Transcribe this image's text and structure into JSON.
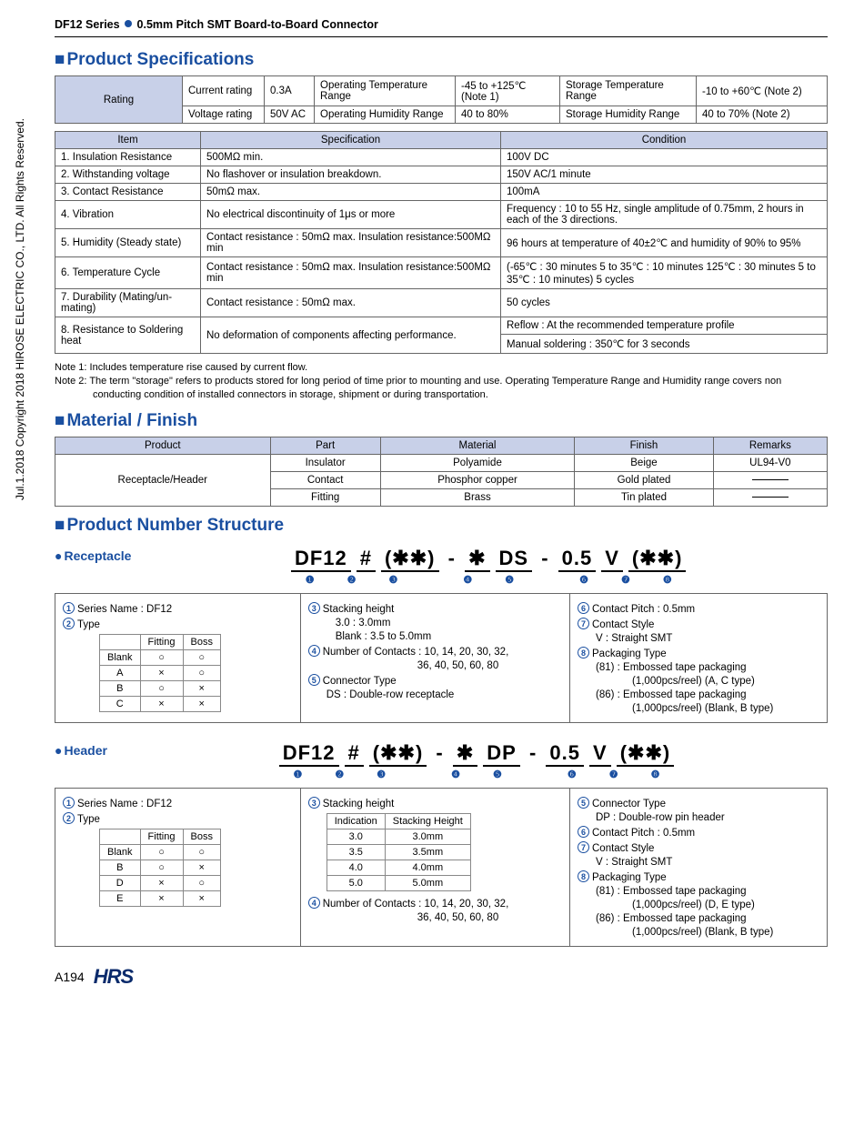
{
  "header": {
    "series": "DF12 Series",
    "subtitle": "0.5mm Pitch SMT Board-to-Board Connector"
  },
  "sidetext": "Jul.1.2018  Copyright 2018 HIROSE ELECTRIC CO., LTD. All Rights Reserved.",
  "sections": {
    "spec_title": "Product Specifications",
    "material_title": "Material / Finish",
    "pn_title": "Product Number Structure"
  },
  "rating_table": {
    "label": "Rating",
    "c1a": "Current rating",
    "c1a_v": "0.3A",
    "c1b": "Voltage rating",
    "c1b_v": "50V AC",
    "c2a": "Operating Temperature Range",
    "c2a_v": "-45 to +125℃ (Note 1)",
    "c2b": "Operating Humidity Range",
    "c2b_v": "40 to 80%",
    "c3a": "Storage Temperature Range",
    "c3a_v": "-10 to +60℃ (Note 2)",
    "c3b": "Storage Humidity Range",
    "c3b_v": "40 to 70% (Note 2)"
  },
  "spec_table": {
    "h1": "Item",
    "h2": "Specification",
    "h3": "Condition",
    "rows": [
      {
        "item": "1. Insulation Resistance",
        "spec": "500MΩ min.",
        "cond": "100V DC"
      },
      {
        "item": "2. Withstanding voltage",
        "spec": "No flashover or insulation breakdown.",
        "cond": "150V AC/1 minute"
      },
      {
        "item": "3. Contact Resistance",
        "spec": "50mΩ max.",
        "cond": "100mA"
      },
      {
        "item": "4. Vibration",
        "spec": "No electrical discontinuity of 1μs or more",
        "cond": "Frequency : 10 to 55 Hz, single amplitude of 0.75mm, 2 hours in each of the 3 directions.",
        "cond_small": true
      },
      {
        "item": "5. Humidity (Steady state)",
        "spec": "Contact resistance : 50mΩ max. Insulation resistance:500MΩ min",
        "spec_small": true,
        "cond": "96 hours at temperature of 40±2℃ and humidity of 90% to 95%"
      },
      {
        "item": "6. Temperature Cycle",
        "spec": "Contact resistance : 50mΩ max. Insulation resistance:500MΩ min",
        "spec_small": true,
        "cond": "(-65℃ : 30 minutes 5 to 35℃ : 10 minutes 125℃ : 30 minutes 5 to 35℃ : 10 minutes) 5 cycles",
        "cond_small": true
      },
      {
        "item": "7. Durability (Mating/un-mating)",
        "item_small": true,
        "spec": "Contact resistance : 50mΩ max.",
        "cond": "50 cycles"
      }
    ],
    "row8": {
      "item": "8. Resistance to Soldering heat",
      "spec": "No deformation of components affecting performance.",
      "cond1": "Reflow : At the recommended temperature profile",
      "cond2": "Manual soldering : 350℃ for 3 seconds"
    }
  },
  "notes": {
    "n1": "Note 1: Includes temperature rise caused by current flow.",
    "n2": "Note 2: The term \"storage\" refers to products stored for long period of time prior to mounting and use. Operating Temperature Range and Humidity range covers non conducting condition of installed connectors in storage, shipment or during transportation."
  },
  "material_table": {
    "h": [
      "Product",
      "Part",
      "Material",
      "Finish",
      "Remarks"
    ],
    "product": "Receptacle/Header",
    "rows": [
      {
        "part": "Insulator",
        "mat": "Polyamide",
        "fin": "Beige",
        "rem": "UL94-V0"
      },
      {
        "part": "Contact",
        "mat": "Phosphor copper",
        "fin": "Gold plated",
        "rem": "—"
      },
      {
        "part": "Fitting",
        "mat": "Brass",
        "fin": "Tin plated",
        "rem": "—"
      }
    ]
  },
  "receptacle": {
    "title": "Receptacle",
    "segs": [
      "DF12",
      "#",
      "(✱✱)",
      "-",
      "✱",
      "DS",
      "-",
      "0.5",
      "V",
      "(✱✱)"
    ],
    "nums": [
      "❶",
      "❷",
      "❸",
      "",
      "❹",
      "❺",
      "",
      "❻",
      "❼",
      "❽"
    ],
    "col1": {
      "l1_num": "1",
      "l1": "Series Name   : DF12",
      "l2_num": "2",
      "l2": "Type",
      "type_head": [
        "",
        "Fitting",
        "Boss"
      ],
      "type_rows": [
        [
          "Blank",
          "○",
          "○"
        ],
        [
          "A",
          "×",
          "○"
        ],
        [
          "B",
          "○",
          "×"
        ],
        [
          "C",
          "×",
          "×"
        ]
      ]
    },
    "col2": {
      "l3_num": "3",
      "l3": "Stacking height",
      "l3a": "3.0     : 3.0mm",
      "l3b": "Blank   : 3.5 to 5.0mm",
      "l4_num": "4",
      "l4": "Number of Contacts : 10, 14, 20, 30, 32,",
      "l4a": "36, 40, 50, 60, 80",
      "l5_num": "5",
      "l5": "Connector Type",
      "l5a": "DS : Double-row receptacle"
    },
    "col3": {
      "l6_num": "6",
      "l6": "Contact Pitch : 0.5mm",
      "l7_num": "7",
      "l7": "Contact Style",
      "l7a": "V : Straight SMT",
      "l8_num": "8",
      "l8": "Packaging Type",
      "l8a": "(81) : Embossed tape packaging",
      "l8b": "(1,000pcs/reel) (A, C type)",
      "l8c": "(86) : Embossed tape packaging",
      "l8d": "(1,000pcs/reel) (Blank, B type)"
    }
  },
  "headerpn": {
    "title": "Header",
    "segs": [
      "DF12",
      "#",
      "(✱✱)",
      "-",
      "✱",
      "DP",
      "-",
      "0.5",
      "V",
      "(✱✱)"
    ],
    "nums": [
      "❶",
      "❷",
      "❸",
      "",
      "❹",
      "❺",
      "",
      "❻",
      "❼",
      "❽"
    ],
    "col1": {
      "l1_num": "1",
      "l1": "Series Name   : DF12",
      "l2_num": "2",
      "l2": "Type",
      "type_head": [
        "",
        "Fitting",
        "Boss"
      ],
      "type_rows": [
        [
          "Blank",
          "○",
          "○"
        ],
        [
          "B",
          "○",
          "×"
        ],
        [
          "D",
          "×",
          "○"
        ],
        [
          "E",
          "×",
          "×"
        ]
      ]
    },
    "col2": {
      "l3_num": "3",
      "l3": "Stacking height",
      "sh_head": [
        "Indication",
        "Stacking Height"
      ],
      "sh_rows": [
        [
          "3.0",
          "3.0mm"
        ],
        [
          "3.5",
          "3.5mm"
        ],
        [
          "4.0",
          "4.0mm"
        ],
        [
          "5.0",
          "5.0mm"
        ]
      ],
      "l4_num": "4",
      "l4": "Number of Contacts : 10, 14, 20, 30, 32,",
      "l4a": "36, 40, 50, 60, 80"
    },
    "col3": {
      "l5_num": "5",
      "l5": "Connector Type",
      "l5a": "DP : Double-row pin header",
      "l6_num": "6",
      "l6": "Contact Pitch : 0.5mm",
      "l7_num": "7",
      "l7": "Contact Style",
      "l7a": "V : Straight SMT",
      "l8_num": "8",
      "l8": "Packaging Type",
      "l8a": "(81) : Embossed tape packaging",
      "l8b": "(1,000pcs/reel) (D, E type)",
      "l8c": "(86) : Embossed tape packaging",
      "l8d": "(1,000pcs/reel) (Blank, B type)"
    }
  },
  "footer": {
    "page": "A194",
    "logo": "HRS"
  }
}
